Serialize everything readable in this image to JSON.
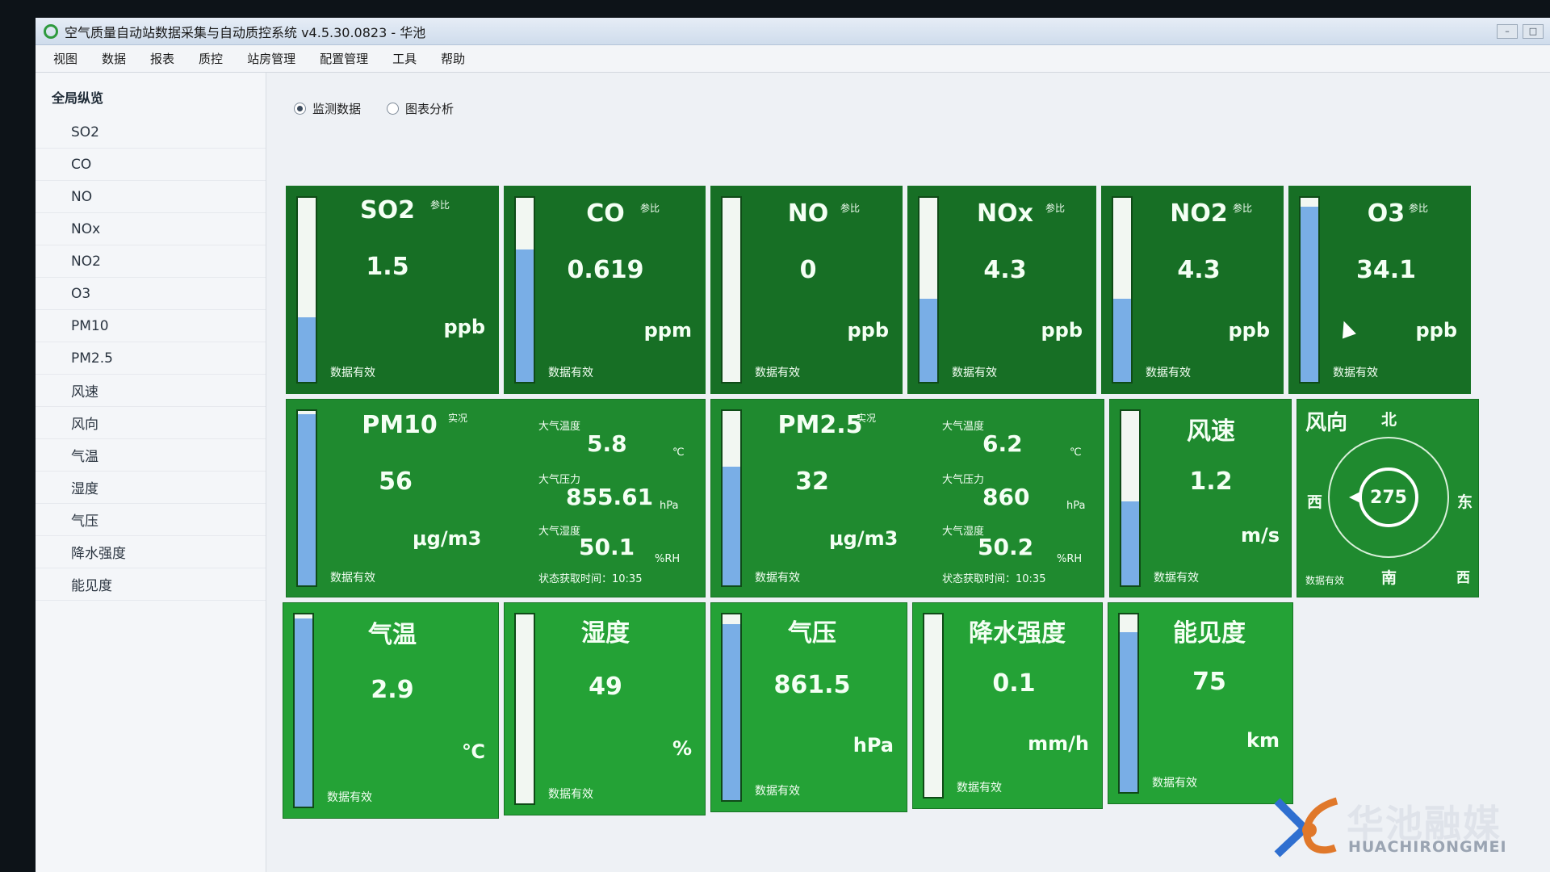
{
  "window": {
    "title": "空气质量自动站数据采集与自动质控系统 v4.5.30.0823 - 华池",
    "controls": [
      "–",
      "□"
    ]
  },
  "menu": [
    "视图",
    "数据",
    "报表",
    "质控",
    "站房管理",
    "配置管理",
    "工具",
    "帮助"
  ],
  "sidebar": {
    "header": "全局纵览",
    "items": [
      "SO2",
      "CO",
      "NO",
      "NOx",
      "NO2",
      "O3",
      "PM10",
      "PM2.5",
      "风速",
      "风向",
      "气温",
      "湿度",
      "气压",
      "降水强度",
      "能见度"
    ]
  },
  "modes": {
    "monitor": "监测数据",
    "chart": "图表分析",
    "selected": "monitor"
  },
  "tiles": {
    "so2": {
      "name": "SO2",
      "tag": "参比",
      "value": "1.5",
      "unit": "ppb",
      "status": "数据有效",
      "level": 0.35
    },
    "co": {
      "name": "CO",
      "tag": "参比",
      "value": "0.619",
      "unit": "ppm",
      "status": "数据有效",
      "level": 0.72
    },
    "no": {
      "name": "NO",
      "tag": "参比",
      "value": "0",
      "unit": "ppb",
      "status": "数据有效",
      "level": 0.0
    },
    "nox": {
      "name": "NOx",
      "tag": "参比",
      "value": "4.3",
      "unit": "ppb",
      "status": "数据有效",
      "level": 0.45
    },
    "no2": {
      "name": "NO2",
      "tag": "参比",
      "value": "4.3",
      "unit": "ppb",
      "status": "数据有效",
      "level": 0.45
    },
    "o3": {
      "name": "O3",
      "tag": "参比",
      "value": "34.1",
      "unit": "ppb",
      "status": "数据有效",
      "level": 0.95
    },
    "pm10": {
      "name": "PM10",
      "tag": "实况",
      "value": "56",
      "unit": "μg/m3",
      "status": "数据有效",
      "level": 0.98,
      "temp_label": "大气温度",
      "temp_value": "5.8",
      "temp_unit": "℃",
      "pressure_label": "大气压力",
      "pressure_value": "855.61",
      "pressure_unit": "hPa",
      "humidity_label": "大气湿度",
      "humidity_value": "50.1",
      "humidity_unit": "%RH",
      "time": "状态获取时间：10:35"
    },
    "pm25": {
      "name": "PM2.5",
      "tag": "实况",
      "value": "32",
      "unit": "μg/m3",
      "status": "数据有效",
      "level": 0.68,
      "temp_label": "大气温度",
      "temp_value": "6.2",
      "temp_unit": "℃",
      "pressure_label": "大气压力",
      "pressure_value": "860",
      "pressure_unit": "hPa",
      "humidity_label": "大气湿度",
      "humidity_value": "50.2",
      "humidity_unit": "%RH",
      "time": "状态获取时间：10:35"
    },
    "wind_speed": {
      "name": "风速",
      "value": "1.2",
      "unit": "m/s",
      "status": "数据有效",
      "level": 0.48
    },
    "wind_dir": {
      "name": "风向",
      "value": "275",
      "north": "北",
      "south": "南",
      "east": "东",
      "west": "西",
      "west_corner": "西",
      "status": "数据有效"
    },
    "temp": {
      "name": "气温",
      "value": "2.9",
      "unit": "℃",
      "status": "数据有效",
      "level": 0.98
    },
    "humidity": {
      "name": "湿度",
      "value": "49",
      "unit": "%",
      "status": "数据有效",
      "level": 0.0
    },
    "pressure": {
      "name": "气压",
      "value": "861.5",
      "unit": "hPa",
      "status": "数据有效",
      "level": 0.95
    },
    "rain": {
      "name": "降水强度",
      "value": "0.1",
      "unit": "mm/h",
      "status": "数据有效",
      "level": 0.0
    },
    "visibility": {
      "name": "能见度",
      "value": "75",
      "unit": "km",
      "status": "数据有效",
      "level": 0.9
    }
  },
  "colors": {
    "tile_green": "#1f8a2f",
    "gauge_fill": "#79aee6"
  },
  "watermark": {
    "cn": "华池融媒",
    "en": "HUACHIRONGMEI"
  }
}
